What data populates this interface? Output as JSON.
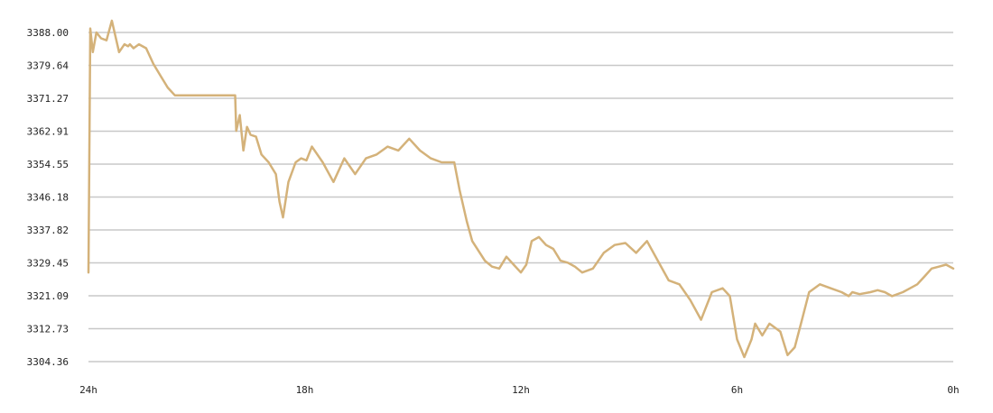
{
  "chart_data": {
    "type": "line",
    "title": "",
    "xlabel": "",
    "ylabel": "",
    "y_ticks": [
      "3388.00",
      "3379.64",
      "3371.27",
      "3362.91",
      "3354.55",
      "3346.18",
      "3337.82",
      "3329.45",
      "3321.09",
      "3312.73",
      "3304.36"
    ],
    "x_ticks": [
      {
        "label": "24h",
        "hours": 24
      },
      {
        "label": "18h",
        "hours": 18
      },
      {
        "label": "12h",
        "hours": 12
      },
      {
        "label": "6h",
        "hours": 6
      },
      {
        "label": "0h",
        "hours": 0
      }
    ],
    "ylim": [
      3304.36,
      3388.0
    ],
    "xlim": [
      24,
      0
    ],
    "grid": true,
    "colors": {
      "line": "#d4b27a",
      "grid": "#c8c8c8"
    },
    "series": [
      {
        "x": [
          24.0,
          23.95,
          23.88,
          23.78,
          23.65,
          23.5,
          23.35,
          23.15,
          23.0,
          22.9,
          22.85,
          22.75,
          22.6,
          22.4,
          22.2,
          22.0,
          21.8,
          21.6,
          21.4,
          21.2,
          21.0,
          20.8,
          20.5,
          20.2,
          19.93,
          19.9,
          19.8,
          19.7,
          19.6,
          19.5,
          19.35,
          19.2,
          19.0,
          18.8,
          18.7,
          18.6,
          18.45,
          18.25,
          18.1,
          17.95,
          17.8,
          17.5,
          17.2,
          16.9,
          16.6,
          16.3,
          16.0,
          15.7,
          15.4,
          15.1,
          14.8,
          14.5,
          14.2,
          14.0,
          13.85,
          13.7,
          13.5,
          13.35,
          13.0,
          12.8,
          12.6,
          12.4,
          12.2,
          12.0,
          11.85,
          11.7,
          11.5,
          11.3,
          11.1,
          10.9,
          10.7,
          10.5,
          10.3,
          10.0,
          9.7,
          9.4,
          9.1,
          8.8,
          8.5,
          8.2,
          7.9,
          7.6,
          7.3,
          7.0,
          6.7,
          6.4,
          6.2,
          6.0,
          5.8,
          5.6,
          5.5,
          5.3,
          5.1,
          4.8,
          4.6,
          4.4,
          4.2,
          4.0,
          3.7,
          3.4,
          3.1,
          2.9,
          2.8,
          2.6,
          2.3,
          2.1,
          1.9,
          1.7,
          1.4,
          1.2,
          1.0,
          0.8,
          0.6,
          0.4,
          0.2,
          0.0
        ],
        "y": [
          3327.0,
          3389.0,
          3383.0,
          3388.0,
          3386.5,
          3386.0,
          3391.0,
          3383.0,
          3385.0,
          3384.5,
          3385.0,
          3384.0,
          3385.0,
          3384.0,
          3380.0,
          3377.0,
          3374.0,
          3372.0,
          3372.0,
          3372.0,
          3372.0,
          3372.0,
          3372.0,
          3372.0,
          3372.0,
          3363.0,
          3367.0,
          3358.0,
          3364.0,
          3362.0,
          3361.5,
          3357.0,
          3355.0,
          3352.0,
          3345.0,
          3341.0,
          3350.0,
          3355.0,
          3356.0,
          3355.5,
          3359.0,
          3355.0,
          3350.0,
          3356.0,
          3352.0,
          3356.0,
          3357.0,
          3359.0,
          3358.0,
          3361.0,
          3358.0,
          3356.0,
          3355.0,
          3355.0,
          3355.0,
          3348.0,
          3340.0,
          3335.0,
          3330.0,
          3328.5,
          3328.0,
          3331.0,
          3329.0,
          3327.0,
          3329.0,
          3335.0,
          3336.0,
          3334.0,
          3333.0,
          3330.0,
          3329.5,
          3328.5,
          3327.0,
          3328.0,
          3332.0,
          3334.0,
          3334.5,
          3332.0,
          3335.0,
          3330.0,
          3325.0,
          3324.0,
          3320.0,
          3315.0,
          3322.0,
          3323.0,
          3321.0,
          3310.0,
          3305.5,
          3310.0,
          3314.0,
          3311.0,
          3314.0,
          3312.0,
          3306.0,
          3308.0,
          3315.0,
          3322.0,
          3324.0,
          3323.0,
          3322.0,
          3321.0,
          3322.0,
          3321.5,
          3322.0,
          3322.5,
          3322.0,
          3321.0,
          3322.0,
          3323.0,
          3324.0,
          3326.0,
          3328.0,
          3328.5,
          3329.0,
          3328.0
        ]
      }
    ]
  }
}
